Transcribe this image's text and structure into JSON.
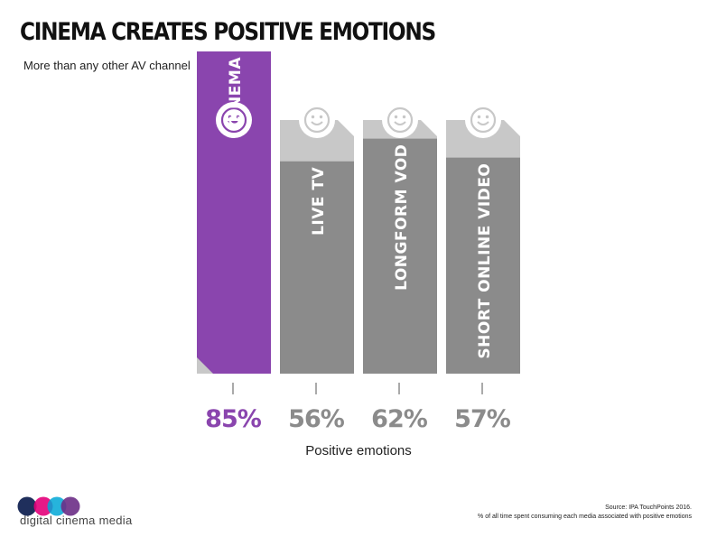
{
  "header": {
    "title": "CINEMA CREATES POSITIVE EMOTIONS",
    "subtitle": "More than any other AV channel"
  },
  "chart_data": {
    "type": "bar",
    "categories": [
      "CINEMA",
      "LIVE TV",
      "LONGFORM VOD",
      "SHORT ONLINE VIDEO"
    ],
    "values": [
      85,
      56,
      62,
      57
    ],
    "value_labels": [
      "85%",
      "56%",
      "62%",
      "57%"
    ],
    "xlabel": "Positive emotions",
    "ylabel": "",
    "ylim": [
      0,
      100
    ],
    "grid": false,
    "icons": [
      "grin-face-icon",
      "smile-face-icon",
      "smile-face-icon",
      "smile-face-icon"
    ],
    "colors": {
      "highlight": "#8a45ae",
      "bar_fill": "#8b8b8b",
      "bar_background": "#c8c8c8",
      "value_text": "#8b8b8b",
      "highlight_text": "#8a45ae"
    }
  },
  "brand": {
    "name": "digital cinema media",
    "logo": "dcm-logo"
  },
  "footer": {
    "source": "Source: IPA TouchPoints 2016.",
    "note": "% of all time spent consuming each media associated with positive emotions"
  }
}
